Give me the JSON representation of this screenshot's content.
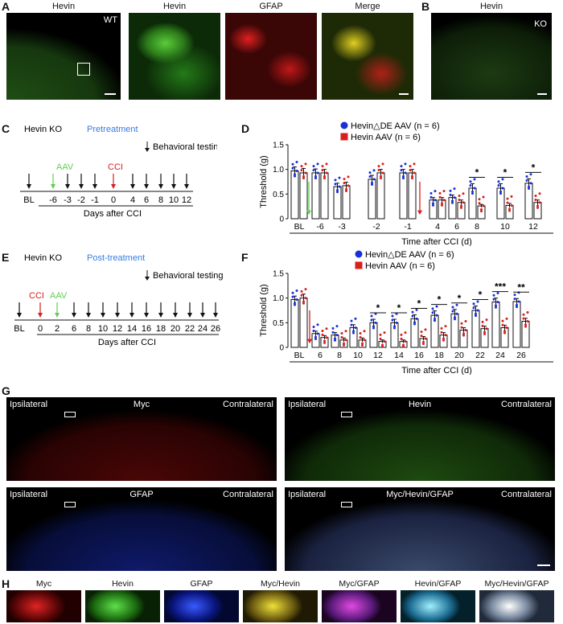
{
  "panelA": {
    "letter": "A",
    "titles": [
      "Hevin",
      "Hevin",
      "GFAP",
      "Merge"
    ],
    "wt_label": "WT"
  },
  "panelB": {
    "letter": "B",
    "title": "Hevin",
    "ko_label": "KO"
  },
  "panelC": {
    "letter": "C",
    "strain": "Hevin KO",
    "mode": "Pretreatment",
    "testing": "Behavioral testing",
    "aav": "AAV",
    "cci": "CCI",
    "ticks": [
      "BL",
      "-6",
      "-3",
      "-2",
      "-1",
      "0",
      "4",
      "6",
      "8",
      "10",
      "12"
    ],
    "axis_label": "Days after CCI"
  },
  "panelE": {
    "letter": "E",
    "strain": "Hevin KO",
    "mode": "Post-treatment",
    "testing": "Behavioral testing",
    "aav": "AAV",
    "cci": "CCI",
    "ticks": [
      "BL",
      "0",
      "2",
      "6",
      "8",
      "10",
      "12",
      "14",
      "16",
      "18",
      "20",
      "22",
      "24",
      "26"
    ],
    "axis_label": "Days after CCI"
  },
  "panelG": {
    "letter": "G",
    "images": [
      {
        "left": "Ipsilateral",
        "center": "Myc",
        "right": "Contralateral"
      },
      {
        "left": "Ipsilateral",
        "center": "Hevin",
        "right": "Contralateral"
      },
      {
        "left": "Ipsilateral",
        "center": "GFAP",
        "right": "Contralateral"
      },
      {
        "left": "Ipsilateral",
        "center": "Myc/Hevin/GFAP",
        "right": "Contralateral"
      }
    ]
  },
  "panelH": {
    "letter": "H",
    "labels": [
      "Myc",
      "Hevin",
      "GFAP",
      "Myc/Hevin",
      "Myc/GFAP",
      "Hevin/GFAP",
      "Myc/Hevin/GFAP"
    ]
  },
  "chart_data": [
    {
      "panel": "D",
      "type": "bar",
      "ylabel": "Threshold (g)",
      "xlabel": "Time after CCI (d)",
      "ylim": [
        0,
        1.5
      ],
      "yticks": [
        "0",
        "0.5",
        "1.0",
        "1.5"
      ],
      "categories": [
        "BL",
        "-6",
        "-3",
        "-2",
        "-1",
        "4",
        "6",
        "8",
        "10",
        "12"
      ],
      "series": [
        {
          "name": "Hevin△DE AAV (n = 6)",
          "color": "#1a2fd6",
          "values": [
            0.97,
            0.93,
            0.65,
            0.8,
            0.93,
            0.38,
            0.43,
            0.62,
            0.62,
            0.72
          ],
          "err": [
            0.08,
            0.08,
            0.07,
            0.08,
            0.07,
            0.05,
            0.05,
            0.09,
            0.09,
            0.09
          ]
        },
        {
          "name": "Hevin AAV (n = 6)",
          "color": "#d81e1e",
          "values": [
            0.93,
            0.93,
            0.67,
            0.93,
            0.93,
            0.38,
            0.33,
            0.26,
            0.27,
            0.33
          ],
          "err": [
            0.09,
            0.07,
            0.07,
            0.07,
            0.07,
            0.05,
            0.05,
            0.03,
            0.04,
            0.05
          ]
        }
      ],
      "significance": [
        {
          "category": "8",
          "label": "*"
        },
        {
          "category": "10",
          "label": "*"
        },
        {
          "category": "12",
          "label": "*"
        }
      ],
      "legend": "top"
    },
    {
      "panel": "F",
      "type": "bar",
      "ylabel": "Threshold (g)",
      "xlabel": "Time after CCI (d)",
      "ylim": [
        0,
        1.5
      ],
      "yticks": [
        "0",
        "0.5",
        "1.0",
        "1.5"
      ],
      "categories": [
        "BL",
        "6",
        "8",
        "10",
        "12",
        "14",
        "16",
        "18",
        "20",
        "22",
        "24",
        "26"
      ],
      "series": [
        {
          "name": "Hevin△DE AAV (n = 6)",
          "color": "#1a2fd6",
          "values": [
            0.97,
            0.28,
            0.25,
            0.4,
            0.5,
            0.5,
            0.58,
            0.65,
            0.68,
            0.75,
            0.92,
            0.93
          ],
          "err": [
            0.07,
            0.05,
            0.05,
            0.06,
            0.07,
            0.07,
            0.08,
            0.09,
            0.09,
            0.09,
            0.08,
            0.06
          ]
        },
        {
          "name": "Hevin AAV (n = 6)",
          "color": "#d81e1e",
          "values": [
            1.0,
            0.2,
            0.15,
            0.15,
            0.12,
            0.12,
            0.18,
            0.25,
            0.35,
            0.38,
            0.4,
            0.53
          ],
          "err": [
            0.08,
            0.04,
            0.04,
            0.04,
            0.03,
            0.03,
            0.04,
            0.05,
            0.05,
            0.05,
            0.05,
            0.06
          ]
        }
      ],
      "significance": [
        {
          "category": "12",
          "label": "*"
        },
        {
          "category": "14",
          "label": "*"
        },
        {
          "category": "16",
          "label": "*"
        },
        {
          "category": "18",
          "label": "*"
        },
        {
          "category": "20",
          "label": "*"
        },
        {
          "category": "22",
          "label": "*"
        },
        {
          "category": "24",
          "label": "***"
        },
        {
          "category": "26",
          "label": "**"
        }
      ],
      "legend": "top"
    }
  ]
}
